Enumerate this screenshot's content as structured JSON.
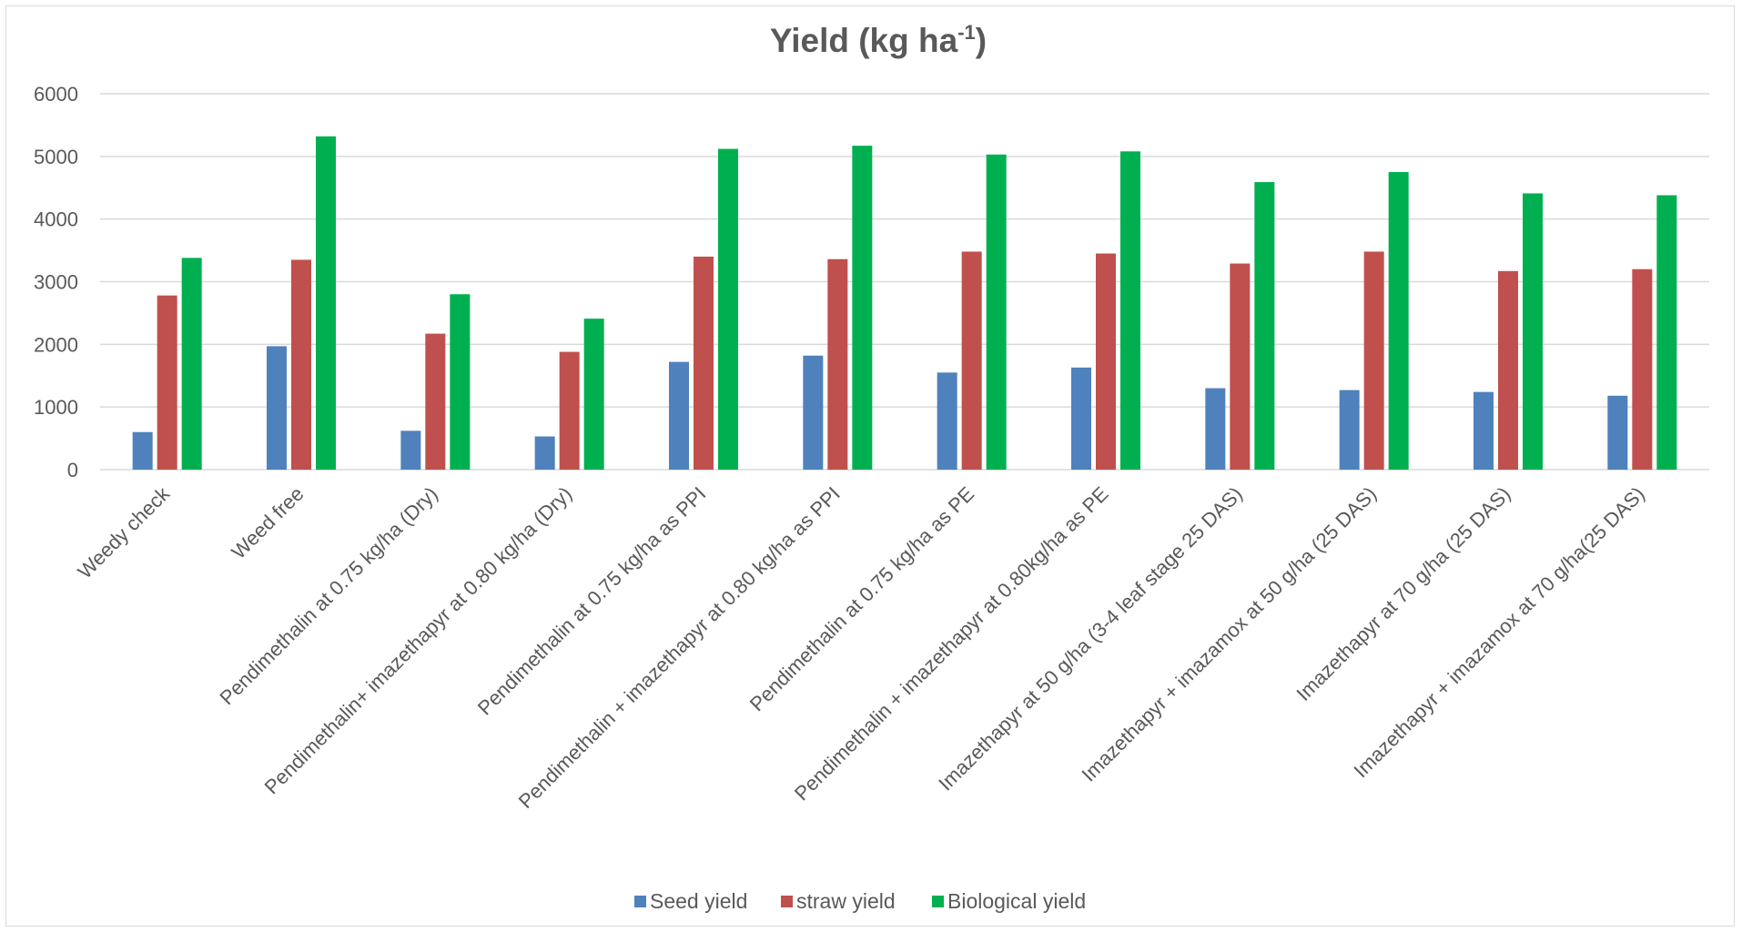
{
  "chart_data": {
    "type": "bar",
    "title": "Yield (kg ha",
    "title_superscript": "-1",
    "title_suffix": ")",
    "xlabel": "",
    "ylabel": "",
    "ylim": [
      0,
      6000
    ],
    "yticks": [
      "0",
      "1000",
      "2000",
      "3000",
      "4000",
      "5000",
      "6000"
    ],
    "grid": true,
    "legend_position": "bottom",
    "categories": [
      "Weedy check",
      "Weed free",
      "Pendimethalin at 0.75 kg/ha (Dry)",
      "Pendimethalin+ imazethapyr at 0.80 kg/ha (Dry)",
      "Pendimethalin at 0.75 kg/ha as PPI",
      "Pendimethalin + imazethapyr at 0.80 kg/ha as  PPI",
      "Pendimethalin at 0.75 kg/ha as PE",
      "Pendimethalin + imazethapyr at 0.80kg/ha as  PE",
      "Imazethapyr at 50 g/ha (3-4 leaf stage 25 DAS)",
      "Imazethapyr + imazamox at 50 g/ha (25 DAS)",
      "Imazethapyr at 70 g/ha (25 DAS)",
      "Imazethapyr + imazamox at 70 g/ha(25 DAS)"
    ],
    "series": [
      {
        "name": "Seed yield",
        "color": "#4f81bd",
        "values": [
          600,
          1970,
          620,
          530,
          1720,
          1820,
          1550,
          1630,
          1300,
          1270,
          1240,
          1180
        ]
      },
      {
        "name": "straw yield",
        "color": "#c0504d",
        "values": [
          2780,
          3350,
          2170,
          1880,
          3400,
          3360,
          3480,
          3450,
          3290,
          3480,
          3170,
          3200
        ]
      },
      {
        "name": "Biological yield",
        "color": "#00b050",
        "values": [
          3380,
          5320,
          2800,
          2410,
          5120,
          5170,
          5030,
          5080,
          4590,
          4750,
          4410,
          4380
        ]
      }
    ]
  }
}
